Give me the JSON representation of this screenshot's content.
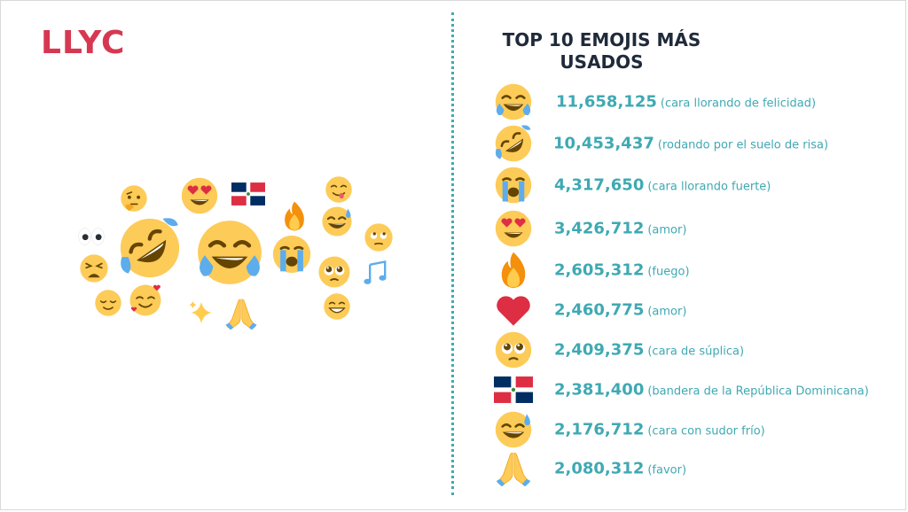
{
  "brand": {
    "logo_text": "LLYC",
    "accent": "#d63852",
    "teal": "#3fa9b3",
    "navy": "#1f2a3a"
  },
  "title": {
    "line1": "TOP 10 EMOJIS MÁS",
    "line2": "USADOS"
  },
  "emoji_cloud": [
    "face-with-tears-of-joy",
    "rolling-on-the-floor-laughing",
    "smiling-face-with-heart-eyes",
    "dominican-republic-flag",
    "thinking-face",
    "eyes",
    "fire",
    "loudly-crying-face",
    "face-savoring",
    "grinning-face-with-sweat",
    "face-with-rolling-eyes",
    "pleading-face",
    "musical-notes",
    "weary-face",
    "relieved-face",
    "smiling-face-with-hearts",
    "sparkles",
    "folded-hands",
    "beaming-face"
  ],
  "chart_data": {
    "type": "table",
    "title": "TOP 10 EMOJIS MÁS USADOS",
    "rows": [
      {
        "icon": "face-with-tears-of-joy",
        "value": 11658125,
        "value_label": "11,658,125",
        "label": "(cara llorando de felicidad)"
      },
      {
        "icon": "rolling-on-the-floor-laughing",
        "value": 10453437,
        "value_label": "10,453,437",
        "label": "(rodando por el suelo de risa)"
      },
      {
        "icon": "loudly-crying-face",
        "value": 4317650,
        "value_label": "4,317,650",
        "label": "(cara llorando fuerte)"
      },
      {
        "icon": "smiling-face-with-heart-eyes",
        "value": 3426712,
        "value_label": "3,426,712",
        "label": "(amor)"
      },
      {
        "icon": "fire",
        "value": 2605312,
        "value_label": "2,605,312",
        "label": "(fuego)"
      },
      {
        "icon": "red-heart",
        "value": 2460775,
        "value_label": "2,460,775",
        "label": "(amor)"
      },
      {
        "icon": "pleading-face",
        "value": 2409375,
        "value_label": "2,409,375",
        "label": "(cara de súplica)"
      },
      {
        "icon": "dominican-republic-flag",
        "value": 2381400,
        "value_label": "2,381,400",
        "label": "(bandera de la República Dominicana)"
      },
      {
        "icon": "grinning-face-with-sweat",
        "value": 2176712,
        "value_label": "2,176,712",
        "label": "(cara con sudor frío)"
      },
      {
        "icon": "folded-hands",
        "value": 2080312,
        "value_label": "2,080,312",
        "label": "(favor)"
      }
    ]
  }
}
